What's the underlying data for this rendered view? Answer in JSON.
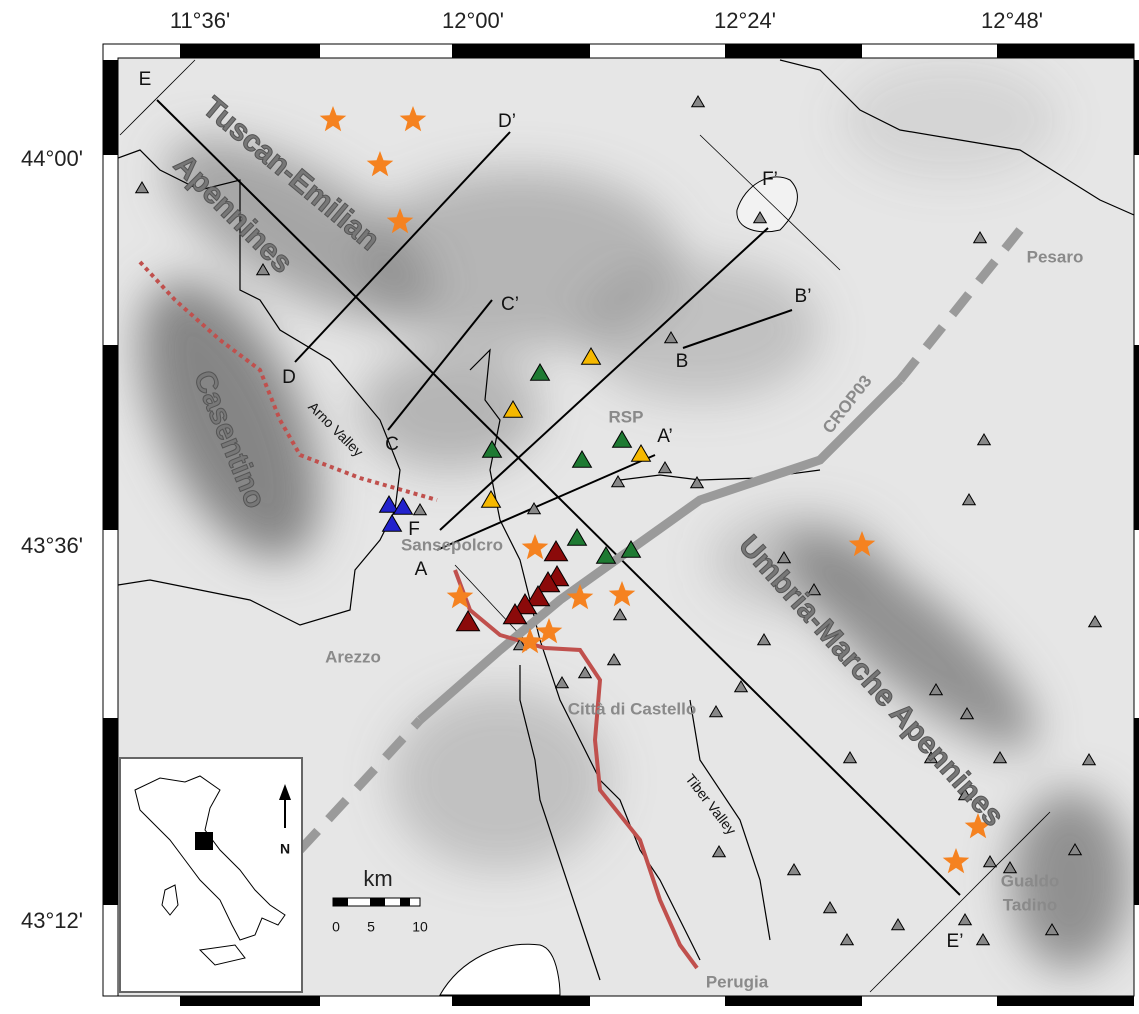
{
  "axes": {
    "top_labels": [
      "11°36'",
      "12°00'",
      "12°24'",
      "12°48'"
    ],
    "left_labels": [
      "44°00'",
      "43°36'",
      "43°12'"
    ]
  },
  "regions": [
    "Tuscan-Emilian",
    "Apennines",
    "Casentino",
    "Umbria-Marche Apennines"
  ],
  "places": [
    "Arezzo",
    "Città di Castello",
    "Sansepolcro",
    "Pesaro",
    "Gualdo",
    "Tadino",
    "Perugia"
  ],
  "features": [
    "Arno Valley",
    "Tiber Valley",
    "CROP03",
    "RSP"
  ],
  "profiles": [
    "E",
    "E’",
    "D",
    "D’",
    "C",
    "C’",
    "B",
    "B’",
    "A",
    "A’",
    "F",
    "F’"
  ],
  "scale_bar": {
    "unit": "km",
    "ticks": [
      0,
      5,
      10
    ]
  },
  "inset": {
    "north": "N"
  }
}
